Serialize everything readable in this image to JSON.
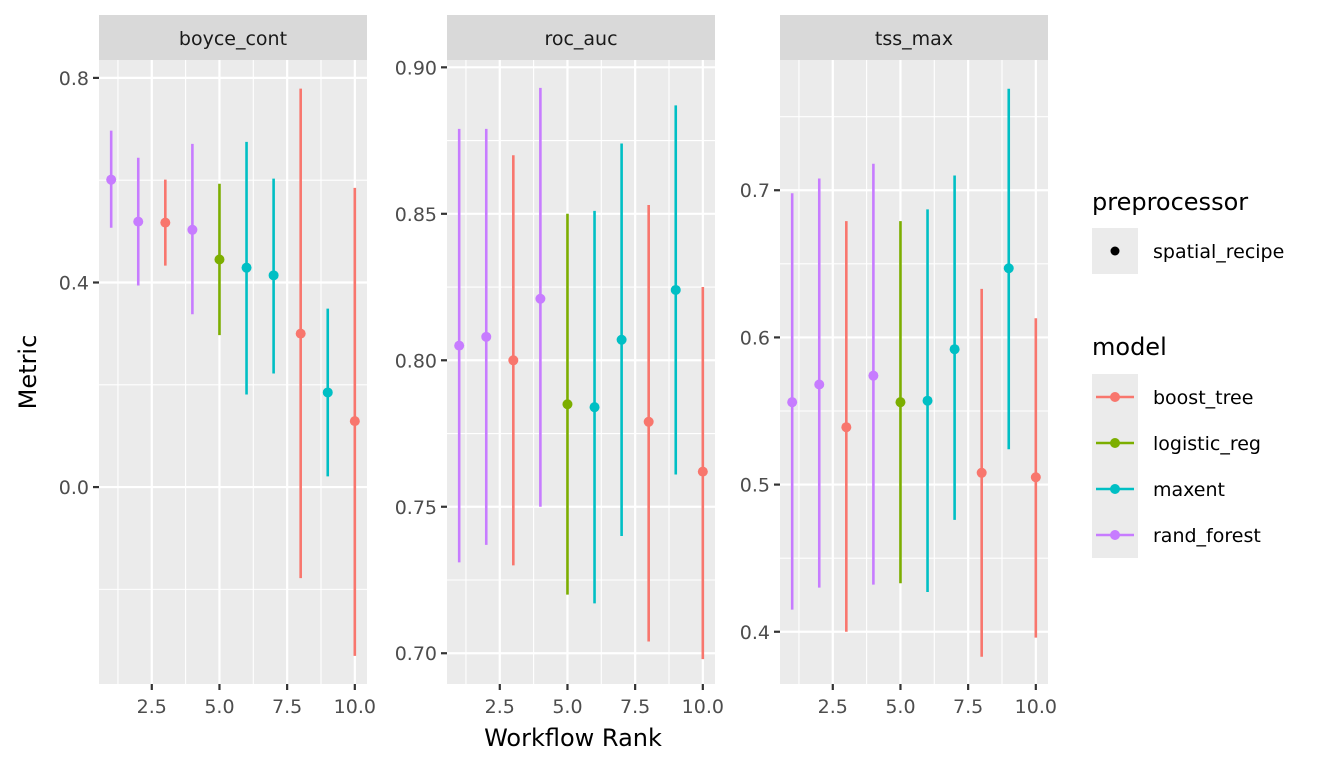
{
  "chart_data": {
    "type": "scatter",
    "subtype": "pointrange",
    "xlabel": "Workflow Rank",
    "ylabel": "Metric",
    "grid": true,
    "x": [
      1,
      2,
      3,
      4,
      5,
      6,
      7,
      8,
      9,
      10
    ],
    "x_ticks": [
      2.5,
      5.0,
      7.5,
      10.0
    ],
    "x_tick_labels": [
      "2.5",
      "5.0",
      "7.5",
      "10.0"
    ],
    "xlim": [
      0.55,
      10.45
    ],
    "model_per_rank": [
      "rand_forest",
      "rand_forest",
      "boost_tree",
      "rand_forest",
      "logistic_reg",
      "maxent",
      "maxent",
      "boost_tree",
      "maxent",
      "boost_tree"
    ],
    "panels": [
      {
        "title": "boyce_cont",
        "ylim": [
          -0.385,
          0.835
        ],
        "y_ticks": [
          0.0,
          0.4,
          0.8
        ],
        "y_tick_labels": [
          "0.0",
          "0.4",
          "0.8"
        ],
        "y_minor": [
          -0.2,
          0.2,
          0.6
        ],
        "mean": [
          0.601,
          0.519,
          0.517,
          0.503,
          0.445,
          0.429,
          0.414,
          0.3,
          0.185,
          0.129
        ],
        "lower": [
          0.507,
          0.394,
          0.433,
          0.338,
          0.297,
          0.181,
          0.222,
          -0.178,
          0.021,
          -0.33
        ],
        "upper": [
          0.697,
          0.644,
          0.601,
          0.671,
          0.593,
          0.675,
          0.603,
          0.779,
          0.349,
          0.585
        ]
      },
      {
        "title": "roc_auc",
        "ylim": [
          0.6895,
          0.9025
        ],
        "y_ticks": [
          0.7,
          0.75,
          0.8,
          0.85,
          0.9
        ],
        "y_tick_labels": [
          "0.70",
          "0.75",
          "0.80",
          "0.85",
          "0.90"
        ],
        "y_minor": [
          0.725,
          0.775,
          0.825,
          0.875
        ],
        "mean": [
          0.805,
          0.808,
          0.8,
          0.821,
          0.785,
          0.784,
          0.807,
          0.779,
          0.824,
          0.762
        ],
        "lower": [
          0.731,
          0.737,
          0.73,
          0.75,
          0.72,
          0.717,
          0.74,
          0.704,
          0.761,
          0.698
        ],
        "upper": [
          0.879,
          0.879,
          0.87,
          0.893,
          0.85,
          0.851,
          0.874,
          0.853,
          0.887,
          0.825
        ]
      },
      {
        "title": "tss_max",
        "ylim": [
          0.3645,
          0.7885
        ],
        "y_ticks": [
          0.4,
          0.5,
          0.6,
          0.7
        ],
        "y_tick_labels": [
          "0.4",
          "0.5",
          "0.6",
          "0.7"
        ],
        "y_minor": [
          0.45,
          0.55,
          0.65,
          0.75
        ],
        "mean": [
          0.556,
          0.568,
          0.539,
          0.574,
          0.556,
          0.557,
          0.592,
          0.508,
          0.647,
          0.505
        ],
        "lower": [
          0.415,
          0.43,
          0.4,
          0.432,
          0.433,
          0.427,
          0.476,
          0.383,
          0.524,
          0.396
        ],
        "upper": [
          0.698,
          0.708,
          0.679,
          0.718,
          0.679,
          0.687,
          0.71,
          0.633,
          0.769,
          0.613
        ]
      }
    ],
    "legends": [
      {
        "title": "preprocessor",
        "entries": [
          {
            "label": "spatial_recipe",
            "key": "point",
            "color": "#000000"
          }
        ]
      },
      {
        "title": "model",
        "entries": [
          {
            "label": "boost_tree",
            "key": "pointrange",
            "color": "#F8766D"
          },
          {
            "label": "logistic_reg",
            "key": "pointrange",
            "color": "#7CAE00"
          },
          {
            "label": "maxent",
            "key": "pointrange",
            "color": "#00BFC4"
          },
          {
            "label": "rand_forest",
            "key": "pointrange",
            "color": "#C77CFF"
          }
        ]
      }
    ],
    "legend_position": "right",
    "colors": {
      "panel_bg": "#EBEBEB",
      "strip_bg": "#D9D9D9",
      "grid": "#FFFFFF",
      "tick": "#333333"
    }
  }
}
